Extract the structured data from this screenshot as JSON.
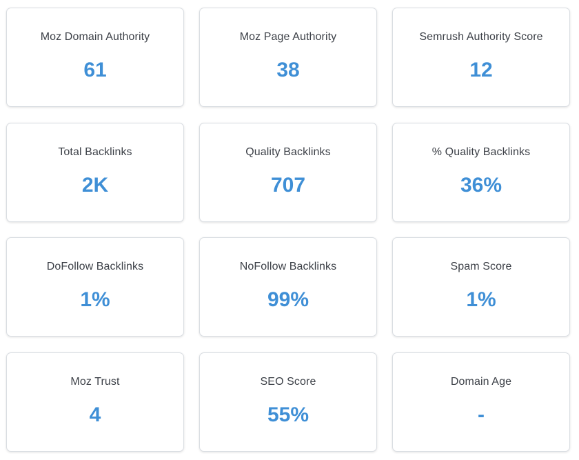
{
  "metrics": [
    {
      "label": "Moz Domain Authority",
      "value": "61"
    },
    {
      "label": "Moz Page Authority",
      "value": "38"
    },
    {
      "label": "Semrush Authority Score",
      "value": "12"
    },
    {
      "label": "Total Backlinks",
      "value": "2K"
    },
    {
      "label": "Quality Backlinks",
      "value": "707"
    },
    {
      "label": "% Quality Backlinks",
      "value": "36%"
    },
    {
      "label": "DoFollow Backlinks",
      "value": "1%"
    },
    {
      "label": "NoFollow Backlinks",
      "value": "99%"
    },
    {
      "label": "Spam Score",
      "value": "1%"
    },
    {
      "label": "Moz Trust",
      "value": "4"
    },
    {
      "label": "SEO Score",
      "value": "55%"
    },
    {
      "label": "Domain Age",
      "value": "-"
    }
  ],
  "colors": {
    "value_text": "#3f8fd6",
    "label_text": "#3d4148",
    "card_border": "#d9dde2"
  }
}
